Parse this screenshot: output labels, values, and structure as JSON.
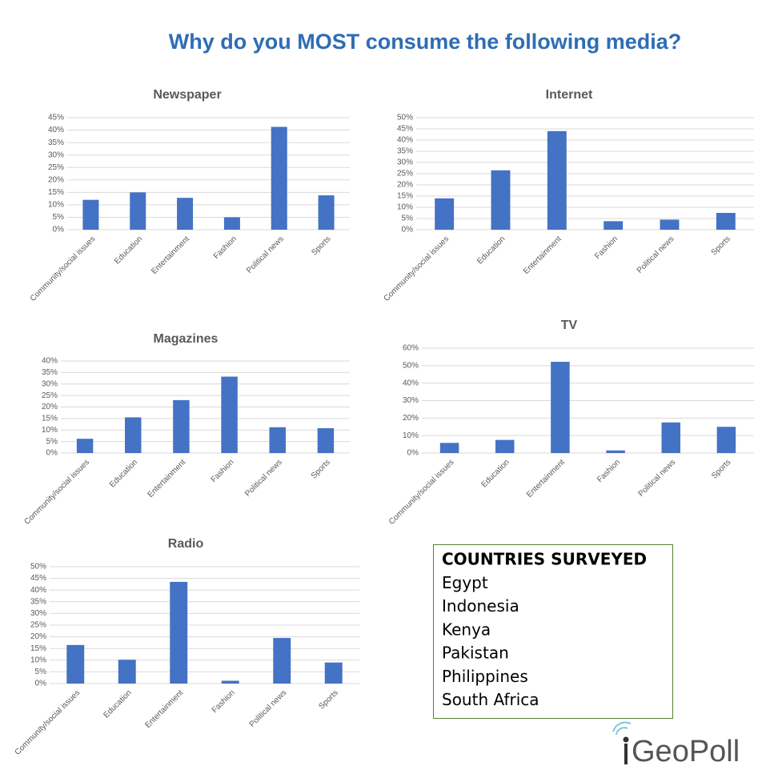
{
  "title": "Why do you MOST consume the following media?",
  "chart_data": [
    {
      "type": "bar",
      "title": "Newspaper",
      "categories": [
        "Community/social issues",
        "Education",
        "Entertainment",
        "Fashion",
        "Political news",
        "Sports"
      ],
      "values": [
        12,
        15,
        12.8,
        5,
        41.3,
        13.8
      ],
      "color": "#4472c4",
      "ylim": [
        0,
        45
      ],
      "yticks": [
        {
          "value": 0,
          "label": "0%"
        },
        {
          "value": 5,
          "label": "5%"
        },
        {
          "value": 10,
          "label": "10%"
        },
        {
          "value": 15,
          "label": "15%"
        },
        {
          "value": 20,
          "label": "20%"
        },
        {
          "value": 25,
          "label": "25%"
        },
        {
          "value": 30,
          "label": "30%"
        },
        {
          "value": 35,
          "label": "35%"
        },
        {
          "value": 40,
          "label": "40%"
        },
        {
          "value": 45,
          "label": "45%"
        }
      ],
      "grid": true
    },
    {
      "type": "bar",
      "title": "Internet",
      "categories": [
        "Community/social issues",
        "Education",
        "Entertainment",
        "Fashion",
        "Political news",
        "Sports"
      ],
      "values": [
        14,
        26.5,
        44,
        3.8,
        4.5,
        7.5
      ],
      "color": "#4472c4",
      "ylim": [
        0,
        50
      ],
      "yticks": [
        {
          "value": 0,
          "label": "0%"
        },
        {
          "value": 5,
          "label": "5%"
        },
        {
          "value": 10,
          "label": "10%"
        },
        {
          "value": 15,
          "label": "15%"
        },
        {
          "value": 20,
          "label": "20%"
        },
        {
          "value": 25,
          "label": "25%"
        },
        {
          "value": 30,
          "label": "30%"
        },
        {
          "value": 35,
          "label": "35%"
        },
        {
          "value": 40,
          "label": "40%"
        },
        {
          "value": 45,
          "label": "45%"
        },
        {
          "value": 50,
          "label": "50%"
        }
      ],
      "grid": true
    },
    {
      "type": "bar",
      "title": "Magazines",
      "categories": [
        "Community/social issues",
        "Education",
        "Entertainment",
        "Fashion",
        "Political news",
        "Sports"
      ],
      "values": [
        6.2,
        15.5,
        23,
        33.2,
        11.2,
        10.8
      ],
      "color": "#4472c4",
      "ylim": [
        0,
        40
      ],
      "yticks": [
        {
          "value": 0,
          "label": "0%"
        },
        {
          "value": 5,
          "label": "5%"
        },
        {
          "value": 10,
          "label": "10%"
        },
        {
          "value": 15,
          "label": "15%"
        },
        {
          "value": 20,
          "label": "20%"
        },
        {
          "value": 25,
          "label": "25%"
        },
        {
          "value": 30,
          "label": "30%"
        },
        {
          "value": 35,
          "label": "35%"
        },
        {
          "value": 40,
          "label": "40%"
        }
      ],
      "grid": true
    },
    {
      "type": "bar",
      "title": "TV",
      "categories": [
        "Community/social issues",
        "Education",
        "Entertainment",
        "Fashion",
        "Political news",
        "Sports"
      ],
      "values": [
        5.8,
        7.5,
        52.2,
        1.5,
        17.5,
        15
      ],
      "color": "#4472c4",
      "ylim": [
        0,
        60
      ],
      "yticks": [
        {
          "value": 0,
          "label": "0%"
        },
        {
          "value": 10,
          "label": "10%"
        },
        {
          "value": 20,
          "label": "20%"
        },
        {
          "value": 30,
          "label": "30%"
        },
        {
          "value": 40,
          "label": "40%"
        },
        {
          "value": 50,
          "label": "50%"
        },
        {
          "value": 60,
          "label": "60%"
        }
      ],
      "grid": true
    },
    {
      "type": "bar",
      "title": "Radio",
      "categories": [
        "Community/social issues",
        "Education",
        "Entertainment",
        "Fashion",
        "Political news",
        "Sports"
      ],
      "values": [
        16.5,
        10.2,
        43.5,
        1.2,
        19.5,
        9
      ],
      "color": "#4472c4",
      "ylim": [
        0,
        50
      ],
      "yticks": [
        {
          "value": 0,
          "label": "0%"
        },
        {
          "value": 5,
          "label": "5%"
        },
        {
          "value": 10,
          "label": "10%"
        },
        {
          "value": 15,
          "label": "15%"
        },
        {
          "value": 20,
          "label": "20%"
        },
        {
          "value": 25,
          "label": "25%"
        },
        {
          "value": 30,
          "label": "30%"
        },
        {
          "value": 35,
          "label": "35%"
        },
        {
          "value": 40,
          "label": "40%"
        },
        {
          "value": 45,
          "label": "45%"
        },
        {
          "value": 50,
          "label": "50%"
        }
      ],
      "grid": true
    }
  ],
  "countries": {
    "title": "COUNTRIES SURVEYED",
    "items": [
      "Egypt",
      "Indonesia",
      "Kenya",
      "Pakistan",
      "Philippines",
      "South Africa"
    ]
  },
  "logo": "GeoPoll"
}
